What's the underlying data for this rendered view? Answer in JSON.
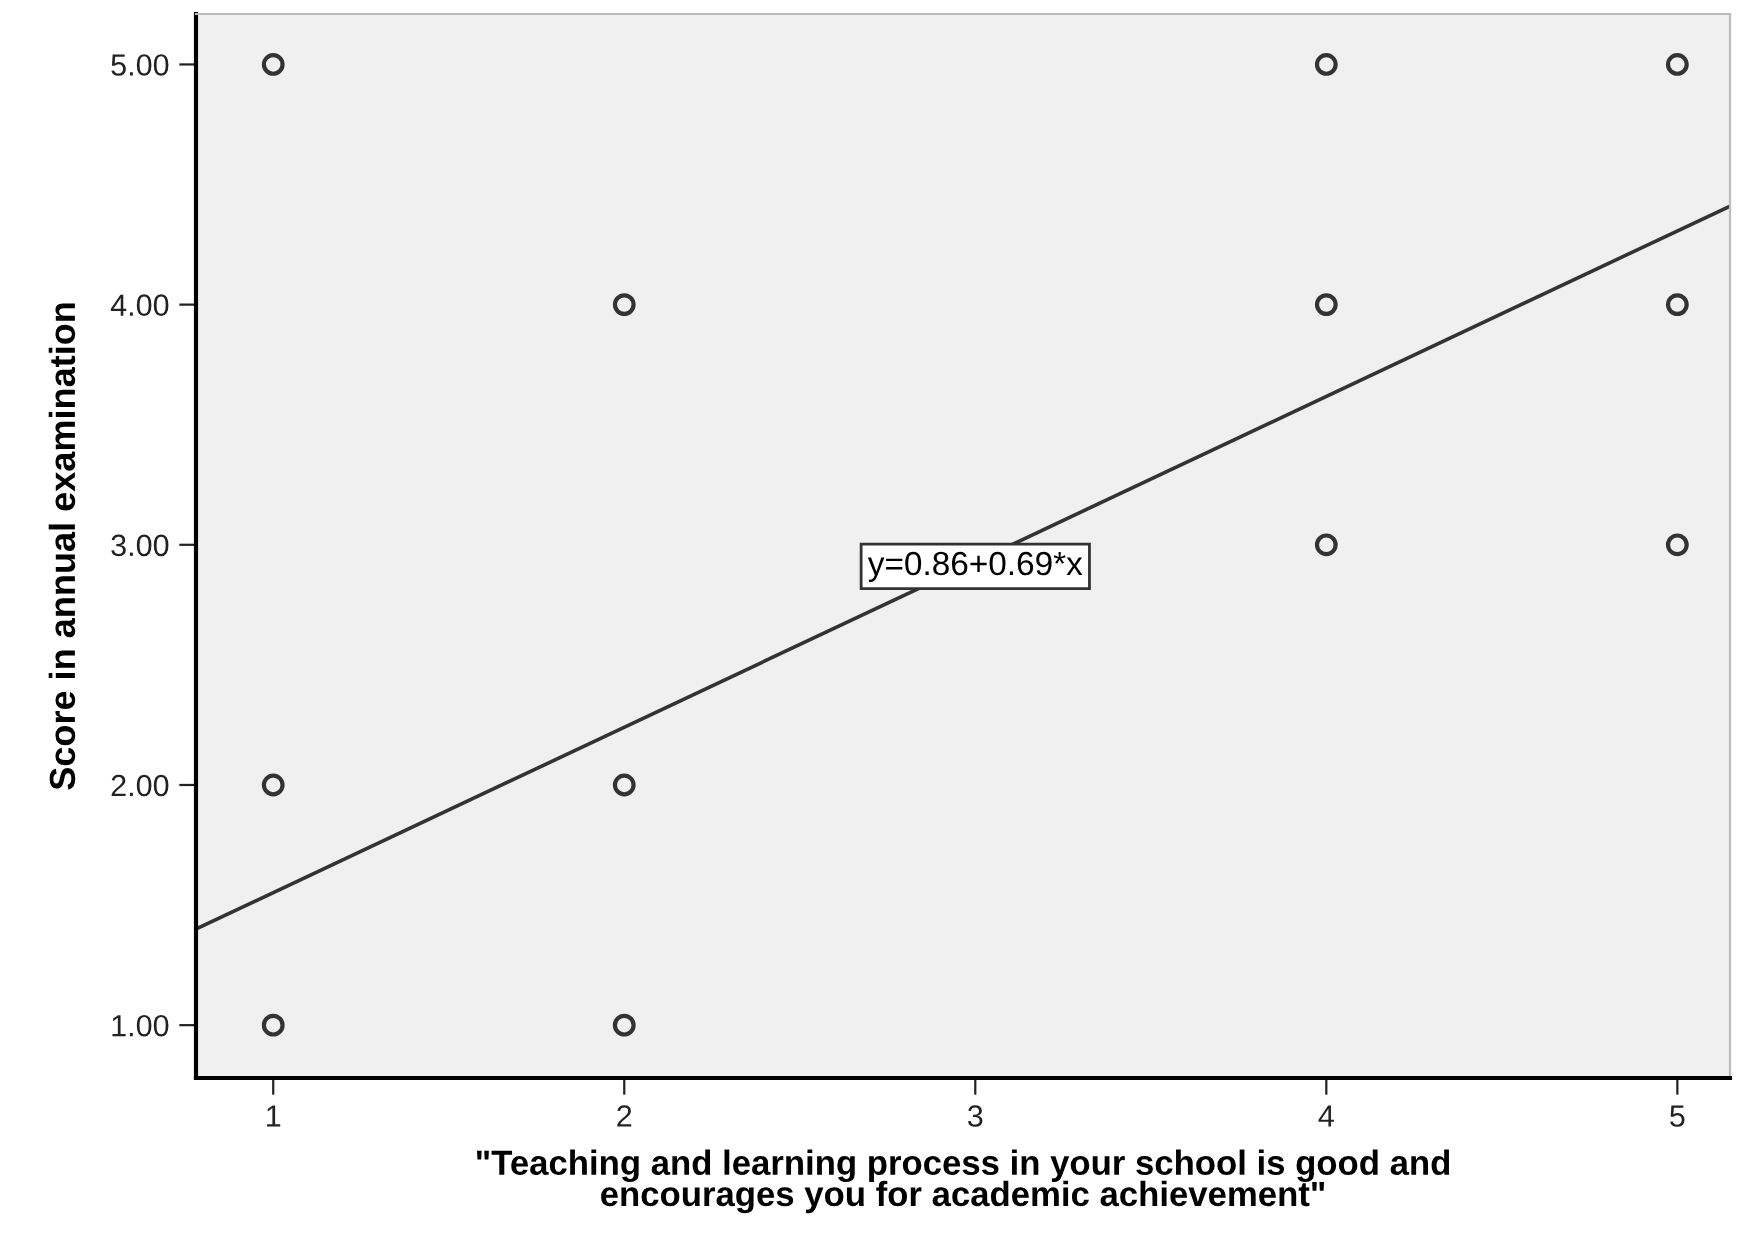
{
  "chart_data": {
    "type": "scatter",
    "xlabel": "\"Teaching and learning process in your school is good and\nencourages you for academic achievement\"",
    "ylabel": "Score in annual examination",
    "xlim": [
      0.78,
      5.15
    ],
    "ylim": [
      0.78,
      5.21
    ],
    "xticks": [
      1,
      2,
      3,
      4,
      5
    ],
    "yticks": [
      {
        "value": 1,
        "label": "1.00"
      },
      {
        "value": 2,
        "label": "2.00"
      },
      {
        "value": 3,
        "label": "3.00"
      },
      {
        "value": 4,
        "label": "4.00"
      },
      {
        "value": 5,
        "label": "5.00"
      }
    ],
    "grid": false,
    "series": [
      {
        "marker": "circle",
        "color": "#333333",
        "x": [
          1,
          1,
          1,
          2,
          2,
          2,
          4,
          4,
          4,
          5,
          5,
          5
        ],
        "values": [
          5,
          2,
          1,
          4,
          2,
          1,
          5,
          4,
          3,
          5,
          4,
          3
        ]
      },
      {
        "type": "line",
        "marker": "none",
        "color": "#333333",
        "x": [
          0.78,
          5.15
        ],
        "values": [
          1.4,
          4.41
        ]
      }
    ],
    "annotations": [
      {
        "text": "y=0.86+0.69*x",
        "x": 3,
        "y": 2.91
      }
    ]
  }
}
